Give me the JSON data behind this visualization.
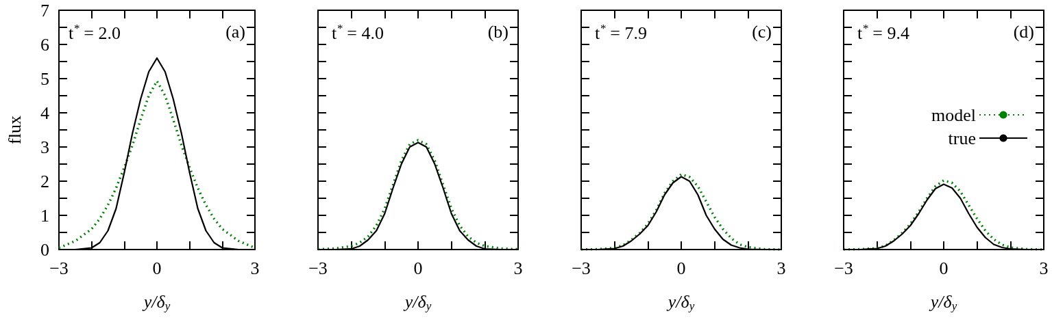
{
  "chart_data": [
    {
      "type": "line",
      "ylabel": "flux",
      "xlabel": "y/δ$_{y}$",
      "annotations": [
        "t$^{*}$ = 2.0",
        "(a)"
      ],
      "x": [
        -3,
        -2.5,
        -2,
        -1.75,
        -1.5,
        -1.25,
        -1,
        -0.75,
        -0.5,
        -0.25,
        0,
        0.25,
        0.5,
        0.75,
        1,
        1.25,
        1.5,
        1.75,
        2,
        2.5,
        3
      ],
      "xlim": [
        -3,
        3
      ],
      "xticks": [
        -3,
        {
          "value": -2,
          "label": null
        },
        {
          "value": -1,
          "label": null
        },
        0,
        {
          "value": 1,
          "label": null
        },
        {
          "value": 2,
          "label": null
        },
        3
      ],
      "ylim": [
        0,
        7
      ],
      "yticks": [
        0,
        {
          "value": 0.5,
          "label": null
        },
        1,
        {
          "value": 1.5,
          "label": null
        },
        2,
        {
          "value": 2.5,
          "label": null
        },
        3,
        {
          "value": 3.5,
          "label": null
        },
        4,
        {
          "value": 4.5,
          "label": null
        },
        5,
        {
          "value": 5.5,
          "label": null
        },
        6,
        {
          "value": 6.5,
          "label": null
        },
        7
      ],
      "grid": false,
      "legend": false,
      "marker": "none",
      "series": [
        {
          "color": "#008000",
          "line_style": "dotted",
          "values": [
            0.05,
            0.25,
            0.6,
            0.9,
            1.3,
            1.8,
            2.4,
            3.05,
            3.8,
            4.5,
            4.93,
            4.5,
            3.8,
            3.05,
            2.4,
            1.8,
            1.3,
            0.9,
            0.6,
            0.25,
            0.05
          ]
        },
        {
          "color": "#000000",
          "line_style": "solid",
          "values": [
            0,
            0,
            0.05,
            0.2,
            0.55,
            1.2,
            2.25,
            3.4,
            4.4,
            5.2,
            5.6,
            5.2,
            4.4,
            3.4,
            2.25,
            1.2,
            0.55,
            0.2,
            0.05,
            0,
            0
          ]
        }
      ]
    },
    {
      "type": "line",
      "xlabel": "y/δ$_{y}$",
      "annotations": [
        "t$^{*}$ = 4.0",
        "(b)"
      ],
      "x": [
        -3,
        -2.5,
        -2,
        -1.75,
        -1.5,
        -1.25,
        -1,
        -0.75,
        -0.5,
        -0.25,
        0,
        0.25,
        0.5,
        0.75,
        1,
        1.25,
        1.5,
        1.75,
        2,
        2.5,
        3
      ],
      "xlim": [
        -3,
        3
      ],
      "xticks": [
        -3,
        {
          "value": -2,
          "label": null
        },
        {
          "value": -1,
          "label": null
        },
        0,
        {
          "value": 1,
          "label": null
        },
        {
          "value": 2,
          "label": null
        },
        3
      ],
      "ylim": [
        0,
        7
      ],
      "yticks": [
        0,
        {
          "value": 0.5,
          "label": null
        },
        1,
        {
          "value": 1.5,
          "label": null
        },
        2,
        {
          "value": 2.5,
          "label": null
        },
        3,
        {
          "value": 3.5,
          "label": null
        },
        4,
        {
          "value": 4.5,
          "label": null
        },
        5,
        {
          "value": 5.5,
          "label": null
        },
        6,
        {
          "value": 6.5,
          "label": null
        },
        7
      ],
      "tick_labels": "x",
      "grid": false,
      "legend": false,
      "marker": "none",
      "series": [
        {
          "color": "#008000",
          "line_style": "dotted",
          "values": [
            0.01,
            0.03,
            0.1,
            0.2,
            0.38,
            0.7,
            1.2,
            1.9,
            2.6,
            3.08,
            3.2,
            3.08,
            2.6,
            1.9,
            1.2,
            0.7,
            0.38,
            0.2,
            0.1,
            0.03,
            0.01
          ]
        },
        {
          "color": "#000000",
          "line_style": "solid",
          "values": [
            0,
            0,
            0.02,
            0.1,
            0.28,
            0.55,
            1.05,
            1.8,
            2.5,
            3.0,
            3.13,
            3.0,
            2.5,
            1.8,
            1.05,
            0.55,
            0.28,
            0.1,
            0.02,
            0,
            0
          ]
        }
      ]
    },
    {
      "type": "line",
      "xlabel": "y/δ$_{y}$",
      "annotations": [
        "t$^{*}$ = 7.9",
        "(c)"
      ],
      "x": [
        -3,
        -2.5,
        -2,
        -1.75,
        -1.5,
        -1.25,
        -1,
        -0.75,
        -0.5,
        -0.25,
        0,
        0.25,
        0.5,
        0.75,
        1,
        1.25,
        1.5,
        1.75,
        2,
        2.5,
        3
      ],
      "xlim": [
        -3,
        3
      ],
      "xticks": [
        -3,
        {
          "value": -2,
          "label": null
        },
        {
          "value": -1,
          "label": null
        },
        0,
        {
          "value": 1,
          "label": null
        },
        {
          "value": 2,
          "label": null
        },
        3
      ],
      "ylim": [
        0,
        7
      ],
      "yticks": [
        0,
        {
          "value": 0.5,
          "label": null
        },
        1,
        {
          "value": 1.5,
          "label": null
        },
        2,
        {
          "value": 2.5,
          "label": null
        },
        3,
        {
          "value": 3.5,
          "label": null
        },
        4,
        {
          "value": 4.5,
          "label": null
        },
        5,
        {
          "value": 5.5,
          "label": null
        },
        6,
        {
          "value": 6.5,
          "label": null
        },
        7
      ],
      "tick_labels": "x",
      "grid": false,
      "legend": false,
      "marker": "none",
      "series": [
        {
          "color": "#008000",
          "line_style": "dotted",
          "values": [
            0,
            0.01,
            0.05,
            0.12,
            0.28,
            0.48,
            0.75,
            1.15,
            1.65,
            2.0,
            2.2,
            2.12,
            1.85,
            1.4,
            0.95,
            0.6,
            0.33,
            0.15,
            0.07,
            0.01,
            0
          ]
        },
        {
          "color": "#000000",
          "line_style": "solid",
          "values": [
            0,
            0,
            0.03,
            0.1,
            0.25,
            0.45,
            0.7,
            1.1,
            1.6,
            1.95,
            2.13,
            2.0,
            1.6,
            1.0,
            0.6,
            0.3,
            0.13,
            0.05,
            0.01,
            0,
            0
          ]
        }
      ]
    },
    {
      "type": "line",
      "xlabel": "y/δ$_{y}$",
      "annotations": [
        "t$^{*}$ = 9.4",
        "(d)"
      ],
      "x": [
        -3,
        -2.5,
        -2,
        -1.75,
        -1.5,
        -1.25,
        -1,
        -0.75,
        -0.5,
        -0.25,
        0,
        0.25,
        0.5,
        0.75,
        1,
        1.25,
        1.5,
        1.75,
        2,
        2.5,
        3
      ],
      "xlim": [
        -3,
        3
      ],
      "xticks": [
        -3,
        {
          "value": -2,
          "label": null
        },
        {
          "value": -1,
          "label": null
        },
        0,
        {
          "value": 1,
          "label": null
        },
        {
          "value": 2,
          "label": null
        },
        3
      ],
      "ylim": [
        0,
        7
      ],
      "yticks": [
        0,
        {
          "value": 0.5,
          "label": null
        },
        1,
        {
          "value": 1.5,
          "label": null
        },
        2,
        {
          "value": 2.5,
          "label": null
        },
        3,
        {
          "value": 3.5,
          "label": null
        },
        4,
        {
          "value": 4.5,
          "label": null
        },
        5,
        {
          "value": 5.5,
          "label": null
        },
        6,
        {
          "value": 6.5,
          "label": null
        },
        7
      ],
      "tick_labels": "x",
      "grid": false,
      "legend": "right",
      "marker": "none",
      "series": [
        {
          "name": "model",
          "color": "#008000",
          "line_style": "dotted",
          "values": [
            0,
            0.01,
            0.04,
            0.11,
            0.27,
            0.48,
            0.75,
            1.1,
            1.5,
            1.85,
            2.02,
            1.95,
            1.7,
            1.3,
            0.9,
            0.55,
            0.3,
            0.14,
            0.06,
            0.01,
            0
          ]
        },
        {
          "name": "true",
          "color": "#000000",
          "line_style": "solid",
          "values": [
            0,
            0,
            0.03,
            0.1,
            0.25,
            0.45,
            0.7,
            1.05,
            1.45,
            1.78,
            1.91,
            1.8,
            1.5,
            1.05,
            0.65,
            0.35,
            0.15,
            0.06,
            0.02,
            0,
            0
          ]
        }
      ]
    }
  ]
}
